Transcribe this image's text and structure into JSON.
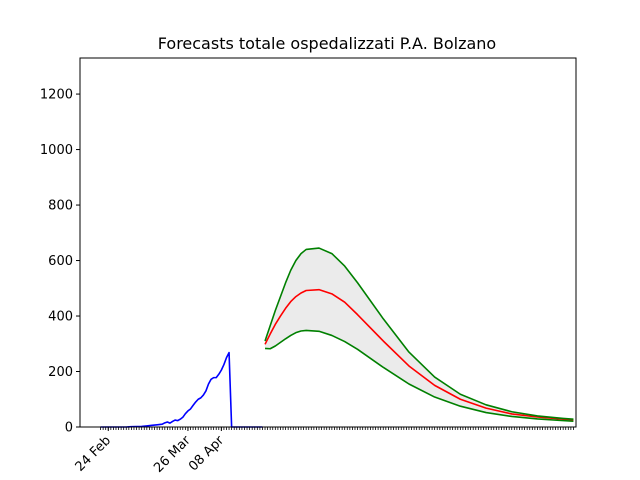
{
  "chart_data": {
    "type": "line",
    "title": "Forecasts totale ospedalizzati P.A. Bolzano",
    "xlabel": "",
    "ylabel": "",
    "ylim": [
      0,
      1330
    ],
    "yticks": [
      0,
      200,
      400,
      600,
      800,
      1000,
      1200
    ],
    "x_start_date": "2020-02-21",
    "xlim_days": [
      -8,
      185
    ],
    "xtick_labels": [
      {
        "day": 3,
        "label": "24 Feb"
      },
      {
        "day": 34,
        "label": "26 Mar"
      },
      {
        "day": 47,
        "label": "08 Apr"
      }
    ],
    "grid": false,
    "series": [
      {
        "name": "",
        "color": "#0000ff",
        "x": [
          0,
          10,
          12,
          16,
          18,
          20,
          22,
          24,
          25,
          26,
          27,
          28,
          29,
          30,
          31,
          32,
          33,
          34,
          35,
          36,
          37,
          38,
          39,
          40,
          41,
          42,
          43,
          44,
          45,
          46,
          47,
          48,
          49,
          50,
          51,
          52,
          53,
          54,
          55,
          56,
          57,
          58,
          59,
          60,
          61,
          62,
          63
        ],
        "y": [
          0,
          0,
          1,
          2,
          4,
          6,
          8,
          10,
          15,
          18,
          14,
          20,
          25,
          23,
          28,
          35,
          48,
          58,
          65,
          78,
          90,
          100,
          105,
          115,
          130,
          155,
          172,
          178,
          178,
          190,
          205,
          225,
          250,
          268,
          0,
          0,
          0,
          0,
          0,
          0,
          0,
          0,
          0,
          0,
          0,
          0,
          0
        ]
      },
      {
        "name": "",
        "color": "#ff0000",
        "x": [
          64,
          66,
          68,
          70,
          72,
          74,
          76,
          78,
          80,
          85,
          90,
          95,
          100,
          110,
          120,
          130,
          140,
          150,
          160,
          170,
          180,
          184
        ],
        "y": [
          298,
          335,
          370,
          400,
          428,
          452,
          470,
          483,
          492,
          495,
          480,
          450,
          405,
          310,
          220,
          150,
          100,
          68,
          47,
          36,
          28,
          26
        ]
      },
      {
        "name": "",
        "color": "#008000",
        "x": [
          64,
          66,
          68,
          70,
          72,
          74,
          76,
          78,
          80,
          85,
          90,
          95,
          100,
          110,
          120,
          130,
          140,
          150,
          160,
          170,
          180,
          184
        ],
        "y": [
          310,
          365,
          420,
          470,
          520,
          565,
          600,
          625,
          640,
          645,
          625,
          580,
          520,
          390,
          270,
          180,
          118,
          80,
          55,
          40,
          31,
          28
        ]
      },
      {
        "name": "",
        "color": "#008000",
        "x": [
          64,
          66,
          68,
          70,
          72,
          74,
          76,
          78,
          80,
          85,
          90,
          95,
          100,
          110,
          120,
          130,
          140,
          150,
          160,
          170,
          180,
          184
        ],
        "y": [
          283,
          282,
          292,
          305,
          318,
          330,
          340,
          346,
          348,
          345,
          330,
          308,
          280,
          215,
          155,
          108,
          75,
          52,
          38,
          29,
          23,
          21
        ]
      }
    ],
    "band": {
      "color": "#ebebeb",
      "x": [
        64,
        66,
        68,
        70,
        72,
        74,
        76,
        78,
        80,
        85,
        90,
        95,
        100,
        110,
        120,
        130,
        140,
        150,
        160,
        170,
        180,
        184
      ],
      "upper": [
        310,
        365,
        420,
        470,
        520,
        565,
        600,
        625,
        640,
        645,
        625,
        580,
        520,
        390,
        270,
        180,
        118,
        80,
        55,
        40,
        31,
        28
      ],
      "lower": [
        283,
        282,
        292,
        305,
        318,
        330,
        340,
        346,
        348,
        345,
        330,
        308,
        280,
        215,
        155,
        108,
        75,
        52,
        38,
        29,
        23,
        21
      ]
    }
  }
}
